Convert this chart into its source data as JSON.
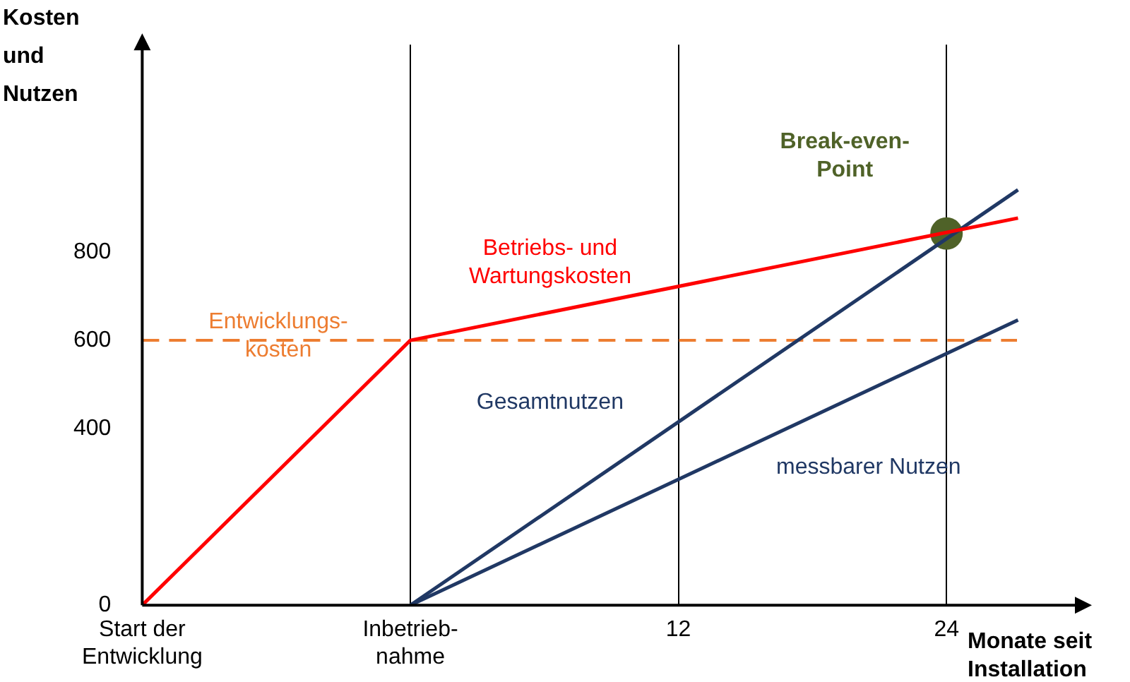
{
  "chart_data": {
    "type": "line",
    "xlabel": "Monate seit Installation",
    "ylabel": "Kosten und Nutzen",
    "xlim": [
      -12,
      30
    ],
    "xticks": [
      {
        "value": -12,
        "label": "Start der\nEntwicklung"
      },
      {
        "value": 0,
        "label": "Inbetrieb-\nnahme"
      },
      12,
      24
    ],
    "ylim": [
      0,
      1270
    ],
    "yticks": [
      0,
      400,
      600,
      800
    ],
    "grid": "x",
    "legend": false,
    "series": [
      {
        "name": "Betriebs- und\nWartungskosten",
        "color": "#ff0000",
        "x": [
          -12,
          0,
          27.2
        ],
        "values": [
          0,
          600,
          877
        ]
      },
      {
        "name": "Gesamtnutzen",
        "color": "#203864",
        "x": [
          0,
          27.2
        ],
        "values": [
          0,
          941
        ]
      },
      {
        "name": "messbarer Nutzen",
        "color": "#203864",
        "x": [
          0,
          27.2
        ],
        "values": [
          0,
          646
        ]
      },
      {
        "name": "Break-even-\nPoint",
        "type": "scatter",
        "color": "#4f6228",
        "x": [
          24
        ],
        "values": [
          842
        ]
      }
    ],
    "ref_lines": [
      {
        "axis": "y",
        "value": 600,
        "color": "#ed7d31",
        "line_style": "dashed",
        "label": "Entwicklungs-\nkosten"
      }
    ]
  }
}
